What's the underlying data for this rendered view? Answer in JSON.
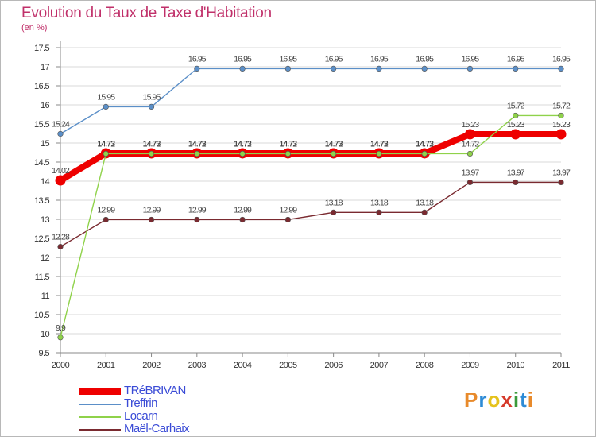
{
  "header": {
    "title": "Evolution du Taux de Taxe d'Habitation",
    "subtitle": "(en %)"
  },
  "logo": {
    "text": "Proxiti",
    "letter_colors": [
      "#e88a2b",
      "#2d8bd6",
      "#e5c21b",
      "#d63a2b",
      "#3a9a3a",
      "#2d8bd6",
      "#e88a2b"
    ]
  },
  "colors": {
    "grid": "#d8d8d8",
    "axis": "#888888"
  },
  "chart_data": {
    "type": "line",
    "title": "Evolution du Taux de Taxe d'Habitation",
    "ylabel": "(en %)",
    "xlabel": "",
    "ylim": [
      9.5,
      17.5
    ],
    "yticks": [
      "9.5",
      "10",
      "10.5",
      "11",
      "11.5",
      "12",
      "12.5",
      "13",
      "13.5",
      "14",
      "14.5",
      "15",
      "15.5",
      "16",
      "16.5",
      "17",
      "17.5"
    ],
    "x": [
      "2000",
      "2001",
      "2002",
      "2003",
      "2004",
      "2005",
      "2006",
      "2007",
      "2008",
      "2009",
      "2010",
      "2011"
    ],
    "grid": "horizontal",
    "legend": "bottom-left",
    "series": [
      {
        "name": "Treffrin",
        "color": "#5b8fc8",
        "values": [
          15.24,
          15.95,
          15.95,
          16.95,
          16.95,
          16.95,
          16.95,
          16.95,
          16.95,
          16.95,
          16.95,
          16.95
        ],
        "labels": [
          "15.24",
          "15.95",
          "15.95",
          "16.95",
          "16.95",
          "16.95",
          "16.95",
          "16.95",
          "16.95",
          "16.95",
          "16.95",
          "16.95"
        ]
      },
      {
        "name": "Maël-Carhaix",
        "color": "#7a2a30",
        "values": [
          12.28,
          12.99,
          12.99,
          12.99,
          12.99,
          12.99,
          13.18,
          13.18,
          13.18,
          13.97,
          13.97,
          13.97
        ],
        "labels": [
          "12.28",
          "12.99",
          "12.99",
          "12.99",
          "12.99",
          "12.99",
          "13.18",
          "13.18",
          "13.18",
          "13.97",
          "13.97",
          "13.97"
        ]
      },
      {
        "name": "TRéBRIVAN",
        "color": "#ee0000",
        "values": [
          14.02,
          14.73,
          14.73,
          14.73,
          14.73,
          14.73,
          14.73,
          14.73,
          14.73,
          15.23,
          15.23,
          15.23
        ],
        "labels": [
          "14.02",
          "14.73",
          "14.73",
          "14.73",
          "14.73",
          "14.73",
          "14.73",
          "14.73",
          "14.73",
          "15.23",
          "15.23",
          "15.23"
        ]
      },
      {
        "name": "Locarn",
        "color": "#8fd24a",
        "values": [
          9.9,
          14.72,
          14.72,
          14.72,
          14.72,
          14.72,
          14.72,
          14.72,
          14.72,
          14.72,
          15.72,
          15.72
        ],
        "labels": [
          "9.9",
          "14.72",
          "14.72",
          "14.72",
          "14.72",
          "14.72",
          "14.72",
          "14.72",
          "14.72",
          "14.72",
          "15.72",
          "15.72"
        ]
      }
    ],
    "legend_order": [
      "TRéBRIVAN",
      "Treffrin",
      "Locarn",
      "Maël-Carhaix"
    ]
  }
}
